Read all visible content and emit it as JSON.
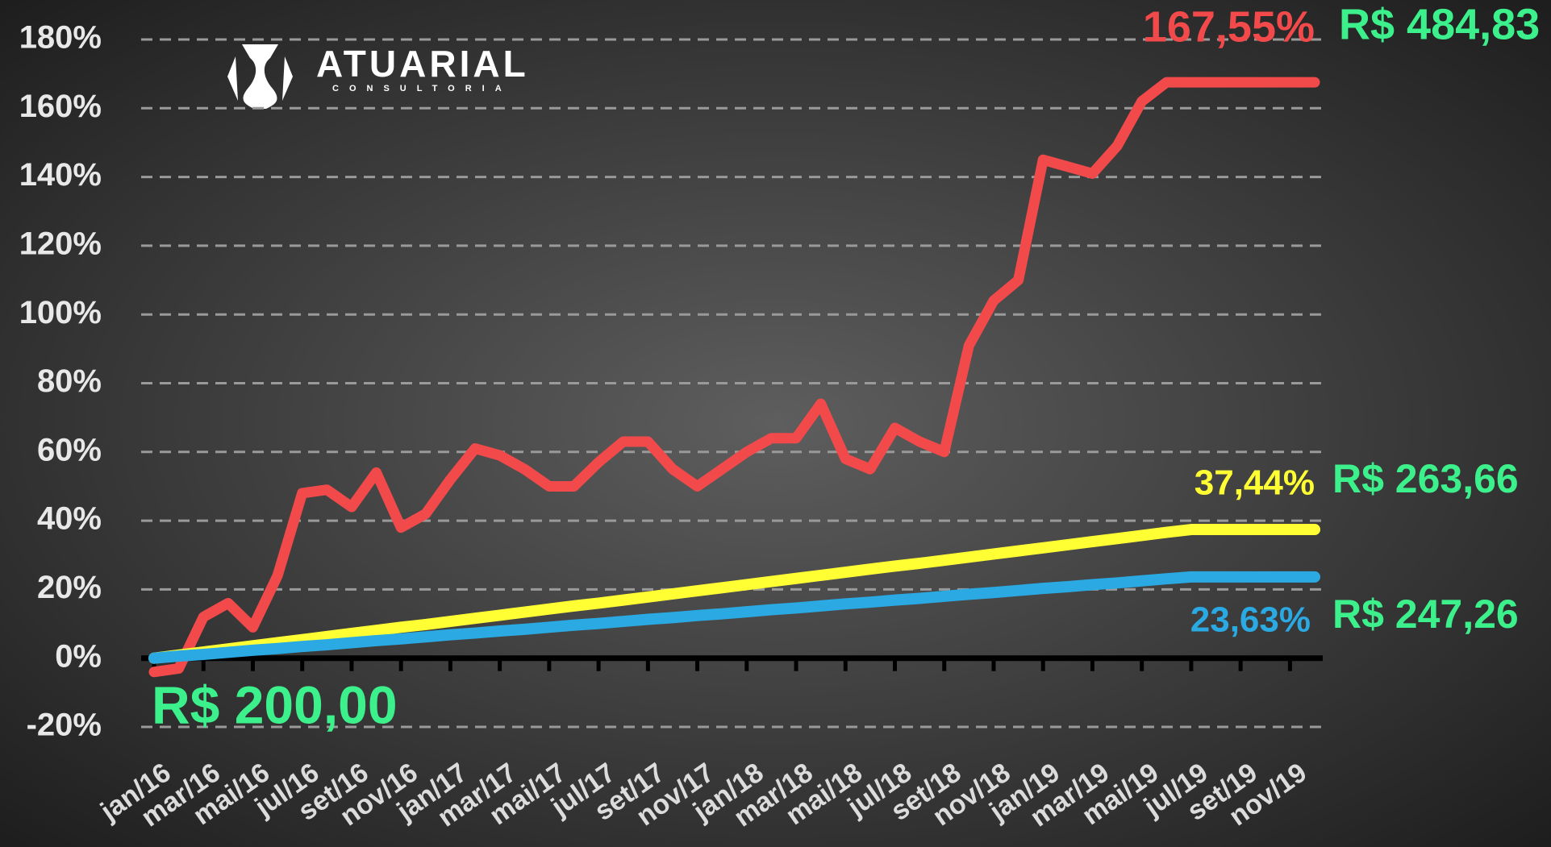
{
  "chart_data": {
    "type": "line",
    "logo": {
      "title": "ATUARIAL",
      "subtitle": "CONSULTORIA"
    },
    "categories": [
      "jan/16",
      null,
      "mar/16",
      null,
      "mai/16",
      null,
      "jul/16",
      null,
      "set/16",
      null,
      "nov/16",
      null,
      "jan/17",
      null,
      "mar/17",
      null,
      "mai/17",
      null,
      "jul/17",
      null,
      "set/17",
      null,
      "nov/17",
      null,
      "jan/18",
      null,
      "mar/18",
      null,
      "mai/18",
      null,
      "jul/18",
      null,
      "set/18",
      null,
      "nov/18",
      null,
      "jan/19",
      null,
      "mar/19",
      null,
      "mai/19",
      null,
      "jul/19",
      null,
      "set/19",
      null,
      "nov/19",
      null
    ],
    "series": [
      {
        "color": "#f24a4a",
        "values": [
          -4,
          -3,
          12,
          16,
          9,
          24,
          48,
          49,
          44,
          54,
          38,
          42,
          52,
          61,
          59,
          55,
          50,
          50,
          57,
          63,
          63,
          55,
          50,
          55,
          60,
          64,
          64,
          74,
          58,
          55,
          67,
          63,
          60,
          91,
          104,
          110,
          145,
          143,
          141,
          149,
          162,
          167.55,
          167.55,
          167.55,
          167.55,
          167.55,
          167.55,
          167.55
        ]
      },
      {
        "color": "#ffff33",
        "values": [
          0,
          0.9,
          1.8,
          2.7,
          3.6,
          4.5,
          5.4,
          6.3,
          7.2,
          8.1,
          9,
          9.8,
          10.7,
          11.6,
          12.5,
          13.4,
          14.3,
          15.2,
          16,
          16.9,
          17.8,
          18.7,
          19.6,
          20.5,
          21.4,
          22.3,
          23.2,
          24.1,
          25,
          25.9,
          26.8,
          27.6,
          28.5,
          29.4,
          30.3,
          31.2,
          32.1,
          33,
          33.9,
          34.8,
          35.7,
          36.6,
          37.44,
          37.44,
          37.44,
          37.44,
          37.44,
          37.44
        ]
      },
      {
        "color": "#2aa9e2",
        "values": [
          0,
          0.6,
          1.1,
          1.7,
          2.3,
          2.8,
          3.4,
          3.9,
          4.5,
          5.1,
          5.6,
          6.2,
          6.8,
          7.3,
          7.9,
          8.4,
          9,
          9.6,
          10.1,
          10.7,
          11.3,
          11.8,
          12.4,
          12.9,
          13.5,
          14.1,
          14.6,
          15.2,
          15.8,
          16.3,
          16.9,
          17.4,
          18,
          18.6,
          19.1,
          19.7,
          20.3,
          20.8,
          21.4,
          21.9,
          22.5,
          23.1,
          23.63,
          23.63,
          23.63,
          23.63,
          23.63,
          23.63
        ]
      }
    ],
    "ylim": [
      -20,
      180
    ],
    "yticks": [
      {
        "value": -20,
        "label": "-20%"
      },
      {
        "value": 0,
        "label": "0%"
      },
      {
        "value": 20,
        "label": "20%"
      },
      {
        "value": 40,
        "label": "40%"
      },
      {
        "value": 60,
        "label": "60%"
      },
      {
        "value": 80,
        "label": "80%"
      },
      {
        "value": 100,
        "label": "100%"
      },
      {
        "value": 120,
        "label": "120%"
      },
      {
        "value": 140,
        "label": "140%"
      },
      {
        "value": 160,
        "label": "160%"
      },
      {
        "value": 180,
        "label": "180%"
      }
    ],
    "grid": true,
    "annotations": [
      {
        "text": "167,55%",
        "color": "#f24a4a"
      },
      {
        "text": "R$ 484,83",
        "color": "#3cf08c"
      },
      {
        "text": "37,44%",
        "color": "#ffff33"
      },
      {
        "text": "R$ 263,66",
        "color": "#3cf08c"
      },
      {
        "text": "23,63%",
        "color": "#2aa9e2"
      },
      {
        "text": "R$ 247,26",
        "color": "#3cf08c"
      },
      {
        "text": "R$ 200,00",
        "color": "#3cf08c"
      }
    ]
  }
}
